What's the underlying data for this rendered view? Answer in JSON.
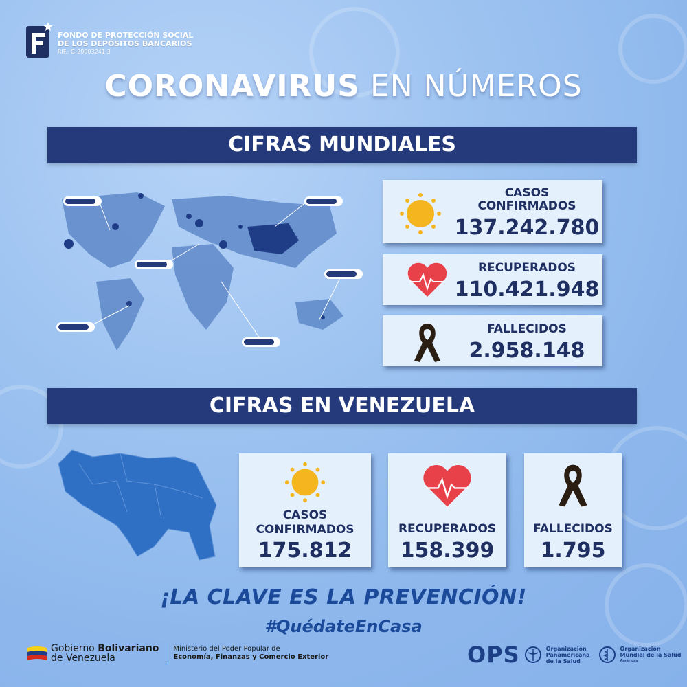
{
  "logo": {
    "line1": "FONDO DE PROTECCIÓN SOCIAL",
    "line2": "DE LOS DEPÓSITOS BANCARIOS",
    "rif": "RIF.: G-20003241-3"
  },
  "title": {
    "bold": "CORONAVIRUS",
    "light": "EN NÚMEROS"
  },
  "world": {
    "band": "CIFRAS MUNDIALES",
    "confirmed": {
      "label_1": "CASOS",
      "label_2": "CONFIRMADOS",
      "value": "137.242.780"
    },
    "recovered": {
      "label": "RECUPERADOS",
      "value": "110.421.948"
    },
    "deaths": {
      "label": "FALLECIDOS",
      "value": "2.958.148"
    }
  },
  "venezuela": {
    "band": "CIFRAS EN VENEZUELA",
    "confirmed": {
      "label_1": "CASOS",
      "label_2": "CONFIRMADOS",
      "value": "175.812"
    },
    "recovered": {
      "label": "RECUPERADOS",
      "value": "158.399"
    },
    "deaths": {
      "label": "FALLECIDOS",
      "value": "1.795"
    }
  },
  "slogan": "¡LA CLAVE ES LA PREVENCIÓN!",
  "hashtag": "#QuédateEnCasa",
  "footer": {
    "gov_1": "Gobierno ",
    "gov_bold": "Bolivariano",
    "gov_2": "de Venezuela",
    "ministry_1": "Ministerio del Poder Popular de",
    "ministry_2": "Economía, Finanzas y Comercio Exterior",
    "ops": "OPS",
    "ops_org_1": "Organización",
    "ops_org_2": "Panamericana",
    "ops_org_3": "de la Salud",
    "who_org_1": "Organización",
    "who_org_2": "Mundial de la Salud",
    "who_org_3": "Américas"
  },
  "colors": {
    "band": "#243a7a",
    "card": "#e4f0fc",
    "text_dark": "#1f2f62",
    "slogan": "#1c4a9a"
  }
}
